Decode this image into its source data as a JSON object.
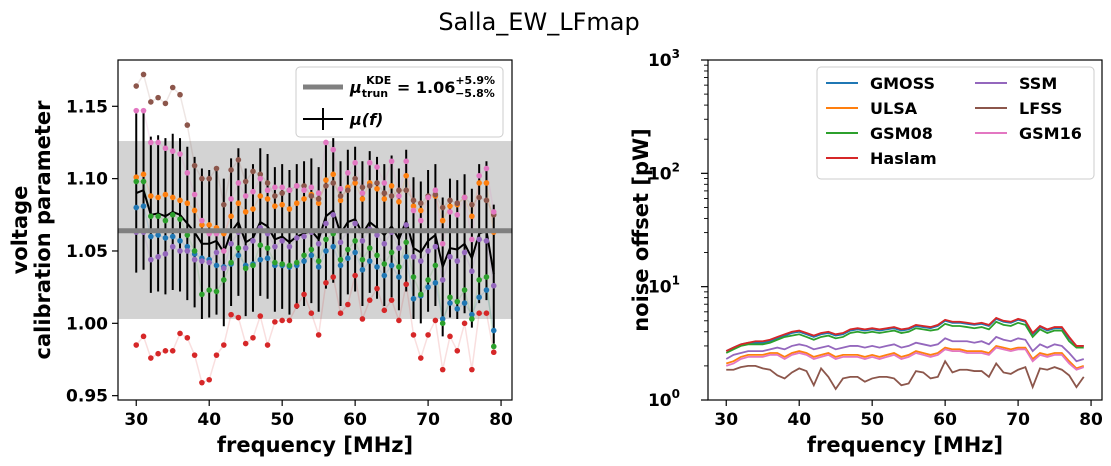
{
  "figure": {
    "title": "Salla_EW_LFmap"
  },
  "colors": {
    "GMOSS": "#1f77b4",
    "ULSA": "#ff7f0e",
    "GSM08": "#2ca02c",
    "Haslam": "#d62728",
    "SSM": "#9467bd",
    "LFSS": "#8c564b",
    "GSM16": "#e377c2",
    "band": "#d3d3d3",
    "kde_line": "#808080"
  },
  "chart_data": [
    {
      "id": "left",
      "type": "scatter",
      "title": "",
      "xlabel": "frequency [MHz]",
      "ylabel_line1": "voltage",
      "ylabel_line2": "calibration parameter",
      "xlim": [
        27.5,
        81.5
      ],
      "ylim": [
        0.947,
        1.182
      ],
      "xticks": [
        30,
        40,
        50,
        60,
        70,
        80
      ],
      "yticks": [
        0.95,
        1.0,
        1.05,
        1.1,
        1.15
      ],
      "ytick_labels": [
        "0.95",
        "1.00",
        "1.05",
        "1.10",
        "1.15"
      ],
      "x": [
        30,
        31,
        32,
        33,
        34,
        35,
        36,
        37,
        38,
        39,
        40,
        41,
        42,
        43,
        44,
        45,
        46,
        47,
        48,
        49,
        50,
        51,
        52,
        53,
        54,
        55,
        56,
        57,
        58,
        59,
        60,
        61,
        62,
        63,
        64,
        65,
        66,
        67,
        68,
        69,
        70,
        71,
        72,
        73,
        74,
        75,
        76,
        77,
        78,
        79
      ],
      "kde": {
        "value": 1.064,
        "band": [
          1.003,
          1.126
        ],
        "legend_main": "μ",
        "legend_sub": "trun",
        "legend_sup": "KDE",
        "legend_value": " = 1.06",
        "legend_plus": "+5.9%",
        "legend_minus": "−5.8%"
      },
      "mean_legend": "μ(f)",
      "mean": [
        1.09,
        1.092,
        1.075,
        1.076,
        1.074,
        1.077,
        1.075,
        1.069,
        1.063,
        1.055,
        1.055,
        1.057,
        1.049,
        1.063,
        1.07,
        1.056,
        1.059,
        1.07,
        1.067,
        1.058,
        1.06,
        1.056,
        1.06,
        1.062,
        1.064,
        1.058,
        1.074,
        1.078,
        1.062,
        1.07,
        1.072,
        1.062,
        1.07,
        1.066,
        1.061,
        1.067,
        1.058,
        1.071,
        1.052,
        1.049,
        1.057,
        1.061,
        1.039,
        1.052,
        1.051,
        1.055,
        1.045,
        1.062,
        1.064,
        1.034
      ],
      "errorbar": [
        0.055,
        0.055,
        0.054,
        0.054,
        0.054,
        0.054,
        0.053,
        0.053,
        0.052,
        0.052,
        0.051,
        0.051,
        0.051,
        0.051,
        0.051,
        0.051,
        0.051,
        0.051,
        0.05,
        0.05,
        0.05,
        0.05,
        0.05,
        0.05,
        0.05,
        0.05,
        0.05,
        0.05,
        0.05,
        0.05,
        0.05,
        0.05,
        0.049,
        0.049,
        0.049,
        0.049,
        0.049,
        0.049,
        0.049,
        0.049,
        0.049,
        0.049,
        0.048,
        0.048,
        0.048,
        0.048,
        0.048,
        0.048,
        0.048,
        0.048
      ],
      "series": [
        {
          "key": "GMOSS",
          "values": [
            1.08,
            1.081,
            1.06,
            1.061,
            1.059,
            1.06,
            1.057,
            1.053,
            1.048,
            1.045,
            1.044,
            1.04,
            1.039,
            1.041,
            1.047,
            1.04,
            1.041,
            1.044,
            1.045,
            1.04,
            1.04,
            1.039,
            1.04,
            1.043,
            1.047,
            1.039,
            1.05,
            1.053,
            1.04,
            1.045,
            1.049,
            1.037,
            1.043,
            1.039,
            1.033,
            1.04,
            1.032,
            1.046,
            1.017,
            1.019,
            1.025,
            1.028,
            1.003,
            1.014,
            1.01,
            1.014,
            1.006,
            1.018,
            1.023,
            0.995
          ]
        },
        {
          "key": "ULSA",
          "values": [
            1.101,
            1.103,
            1.088,
            1.087,
            1.089,
            1.087,
            1.085,
            1.083,
            1.078,
            1.068,
            1.068,
            1.066,
            1.062,
            1.074,
            1.083,
            1.077,
            1.079,
            1.088,
            1.086,
            1.081,
            1.082,
            1.079,
            1.083,
            1.086,
            1.089,
            1.083,
            1.099,
            1.103,
            1.085,
            1.094,
            1.097,
            1.086,
            1.097,
            1.093,
            1.086,
            1.095,
            1.084,
            1.102,
            1.081,
            1.078,
            1.087,
            1.088,
            1.071,
            1.081,
            1.082,
            1.087,
            1.074,
            1.097,
            1.097,
            1.063
          ]
        },
        {
          "key": "GSM08",
          "values": [
            1.098,
            1.098,
            1.074,
            1.074,
            1.071,
            1.075,
            1.072,
            1.061,
            1.05,
            1.02,
            1.023,
            1.022,
            1.03,
            1.042,
            1.052,
            1.038,
            1.04,
            1.054,
            1.052,
            1.042,
            1.041,
            1.04,
            1.042,
            1.047,
            1.051,
            1.043,
            1.058,
            1.062,
            1.044,
            1.051,
            1.057,
            1.044,
            1.052,
            1.047,
            1.041,
            1.049,
            1.039,
            1.056,
            1.032,
            1.02,
            1.03,
            1.04,
            1.0,
            1.018,
            1.015,
            1.023,
            1.003,
            1.03,
            1.032,
            0.984
          ]
        },
        {
          "key": "Haslam",
          "values": [
            0.985,
            0.991,
            0.976,
            0.979,
            0.981,
            0.981,
            0.993,
            0.99,
            0.978,
            0.959,
            0.961,
            0.978,
            0.985,
            1.006,
            1.004,
            0.986,
            0.99,
            1.005,
            0.985,
            1.001,
            1.002,
            1.002,
            1.012,
            1.02,
            1.007,
            0.992,
            1.028,
            1.032,
            1.007,
            1.013,
            1.033,
            1.003,
            1.016,
            1.024,
            1.009,
            1.016,
            1.002,
            1.027,
            0.992,
            0.976,
            0.992,
            1.002,
            0.968,
            0.991,
            0.981,
            1.0,
            0.968,
            1.007,
            1.007,
            0.98
          ]
        },
        {
          "key": "SSM",
          "values": [
            1.063,
            1.063,
            1.044,
            1.046,
            1.048,
            1.053,
            1.05,
            1.05,
            1.044,
            1.043,
            1.042,
            1.049,
            1.038,
            1.055,
            1.063,
            1.052,
            1.057,
            1.066,
            1.062,
            1.053,
            1.057,
            1.053,
            1.059,
            1.06,
            1.063,
            1.055,
            1.069,
            1.075,
            1.056,
            1.064,
            1.069,
            1.057,
            1.065,
            1.061,
            1.055,
            1.063,
            1.052,
            1.068,
            1.046,
            1.043,
            1.05,
            1.053,
            1.03,
            1.046,
            1.043,
            1.049,
            1.036,
            1.058,
            1.057,
            1.026
          ]
        },
        {
          "key": "LFSS",
          "values": [
            1.164,
            1.172,
            1.153,
            1.156,
            1.152,
            1.163,
            1.158,
            1.137,
            1.109,
            1.1,
            1.1,
            1.107,
            1.082,
            1.106,
            1.113,
            1.098,
            1.105,
            1.103,
            1.097,
            1.088,
            1.09,
            1.092,
            1.095,
            1.095,
            1.088,
            1.086,
            1.095,
            1.097,
            1.088,
            1.092,
            1.1,
            1.094,
            1.095,
            1.097,
            1.09,
            1.088,
            1.092,
            1.092,
            1.085,
            1.083,
            1.088,
            1.089,
            1.08,
            1.085,
            1.083,
            1.087,
            1.082,
            1.087,
            1.085,
            1.075
          ]
        },
        {
          "key": "GSM16",
          "values": [
            1.147,
            1.147,
            1.125,
            1.125,
            1.121,
            1.119,
            1.117,
            1.104,
            1.089,
            1.071,
            1.062,
            1.062,
            1.05,
            1.086,
            1.097,
            1.088,
            1.091,
            1.1,
            1.092,
            1.094,
            1.094,
            1.092,
            1.095,
            1.092,
            1.094,
            1.09,
            1.125,
            1.12,
            1.093,
            1.104,
            1.111,
            1.09,
            1.111,
            1.108,
            1.097,
            1.112,
            1.088,
            1.112,
            1.078,
            1.071,
            1.087,
            1.092,
            1.055,
            1.077,
            1.075,
            1.087,
            1.058,
            1.102,
            1.107,
            1.077
          ]
        }
      ]
    },
    {
      "id": "right",
      "type": "line",
      "title": "",
      "xlabel": "frequency [MHz]",
      "ylabel": "noise offset [pW]",
      "yscale": "log",
      "xlim": [
        27.5,
        81.5
      ],
      "ylim": [
        1,
        1000
      ],
      "xticks": [
        30,
        40,
        50,
        60,
        70,
        80
      ],
      "yticks": [
        1,
        10,
        100,
        1000
      ],
      "ytick_base": "10",
      "ytick_exps": [
        "0",
        "1",
        "2",
        "3"
      ],
      "legend": {
        "placement": "upper-right",
        "columns": 2
      },
      "x": [
        30,
        31,
        32,
        33,
        34,
        35,
        36,
        37,
        38,
        39,
        40,
        41,
        42,
        43,
        44,
        45,
        46,
        47,
        48,
        49,
        50,
        51,
        52,
        53,
        54,
        55,
        56,
        57,
        58,
        59,
        60,
        61,
        62,
        63,
        64,
        65,
        66,
        67,
        68,
        69,
        70,
        71,
        72,
        73,
        74,
        75,
        76,
        77,
        78,
        79
      ],
      "series": [
        {
          "key": "GMOSS",
          "name": "GMOSS",
          "values": [
            2.7,
            2.9,
            3.1,
            3.2,
            3.2,
            3.2,
            3.3,
            3.5,
            3.7,
            3.9,
            4.0,
            3.8,
            3.6,
            3.8,
            3.9,
            3.7,
            3.8,
            4.1,
            4.2,
            4.1,
            4.2,
            4.1,
            4.2,
            4.3,
            4.1,
            4.2,
            4.5,
            4.4,
            4.3,
            4.5,
            5.0,
            4.8,
            4.8,
            4.7,
            4.6,
            4.7,
            4.5,
            5.2,
            4.9,
            4.8,
            5.1,
            4.9,
            3.8,
            4.4,
            4.1,
            4.3,
            4.3,
            3.5,
            3.0,
            3.0
          ]
        },
        {
          "key": "ULSA",
          "name": "ULSA",
          "values": [
            2.1,
            2.2,
            2.4,
            2.5,
            2.5,
            2.5,
            2.6,
            2.6,
            2.4,
            2.6,
            2.7,
            2.6,
            2.4,
            2.5,
            2.6,
            2.4,
            2.5,
            2.5,
            2.5,
            2.4,
            2.5,
            2.4,
            2.5,
            2.6,
            2.4,
            2.5,
            2.7,
            2.6,
            2.5,
            2.6,
            2.9,
            2.8,
            2.8,
            2.7,
            2.7,
            2.7,
            2.6,
            3.0,
            2.9,
            2.8,
            2.9,
            2.9,
            2.3,
            2.6,
            2.5,
            2.6,
            2.6,
            2.2,
            1.9,
            2.0
          ]
        },
        {
          "key": "GSM08",
          "name": "GSM08",
          "values": [
            2.6,
            2.8,
            3.0,
            3.1,
            3.1,
            3.1,
            3.2,
            3.4,
            3.6,
            3.7,
            3.8,
            3.6,
            3.4,
            3.6,
            3.7,
            3.5,
            3.6,
            3.9,
            4.0,
            3.9,
            4.0,
            3.9,
            4.0,
            4.1,
            3.9,
            4.0,
            4.3,
            4.2,
            4.1,
            4.2,
            4.7,
            4.5,
            4.5,
            4.4,
            4.3,
            4.4,
            4.2,
            4.9,
            4.6,
            4.5,
            4.8,
            4.6,
            3.6,
            4.2,
            3.9,
            4.1,
            4.1,
            3.3,
            2.9,
            2.9
          ]
        },
        {
          "key": "Haslam",
          "name": "Haslam",
          "values": [
            2.7,
            2.9,
            3.1,
            3.2,
            3.3,
            3.3,
            3.4,
            3.6,
            3.8,
            4.0,
            4.1,
            3.9,
            3.7,
            3.9,
            4.0,
            3.8,
            3.9,
            4.2,
            4.3,
            4.2,
            4.3,
            4.2,
            4.3,
            4.4,
            4.2,
            4.3,
            4.6,
            4.5,
            4.4,
            4.6,
            5.1,
            4.9,
            4.9,
            4.8,
            4.7,
            4.8,
            4.6,
            5.3,
            5.0,
            4.9,
            5.2,
            5.0,
            3.9,
            4.5,
            4.2,
            4.4,
            4.4,
            3.6,
            3.0,
            3.0
          ]
        },
        {
          "key": "SSM",
          "name": "SSM",
          "values": [
            2.3,
            2.5,
            2.6,
            2.7,
            2.7,
            2.7,
            2.8,
            2.9,
            2.8,
            3.0,
            3.1,
            3.0,
            2.8,
            2.9,
            3.0,
            2.8,
            2.9,
            3.0,
            3.0,
            2.9,
            3.0,
            2.9,
            3.0,
            3.1,
            2.9,
            3.0,
            3.2,
            3.1,
            3.0,
            3.1,
            3.5,
            3.3,
            3.3,
            3.3,
            3.2,
            3.3,
            3.1,
            3.6,
            3.4,
            3.3,
            3.5,
            3.4,
            2.7,
            3.1,
            2.9,
            3.1,
            3.0,
            2.6,
            2.2,
            2.3
          ]
        },
        {
          "key": "LFSS",
          "name": "LFSS",
          "values": [
            1.85,
            1.85,
            1.95,
            2.0,
            2.0,
            1.9,
            1.85,
            1.65,
            1.55,
            1.75,
            1.9,
            1.8,
            1.35,
            1.9,
            1.6,
            1.25,
            1.55,
            1.6,
            1.6,
            1.45,
            1.55,
            1.6,
            1.6,
            1.55,
            1.35,
            1.4,
            1.8,
            1.75,
            1.55,
            1.6,
            2.2,
            1.75,
            1.85,
            1.85,
            1.8,
            1.8,
            1.6,
            2.1,
            1.75,
            1.7,
            1.85,
            1.95,
            1.3,
            1.9,
            1.85,
            1.95,
            1.85,
            1.65,
            1.3,
            1.6
          ]
        },
        {
          "key": "GSM16",
          "name": "GSM16",
          "values": [
            2.0,
            2.1,
            2.3,
            2.4,
            2.4,
            2.4,
            2.5,
            2.5,
            2.3,
            2.5,
            2.6,
            2.5,
            2.3,
            2.4,
            2.5,
            2.3,
            2.4,
            2.4,
            2.4,
            2.3,
            2.4,
            2.3,
            2.4,
            2.5,
            2.3,
            2.4,
            2.6,
            2.5,
            2.4,
            2.5,
            2.8,
            2.7,
            2.7,
            2.6,
            2.6,
            2.6,
            2.5,
            2.9,
            2.8,
            2.7,
            2.8,
            2.8,
            2.2,
            2.5,
            2.4,
            2.5,
            2.5,
            2.1,
            1.85,
            1.95
          ]
        }
      ]
    }
  ]
}
